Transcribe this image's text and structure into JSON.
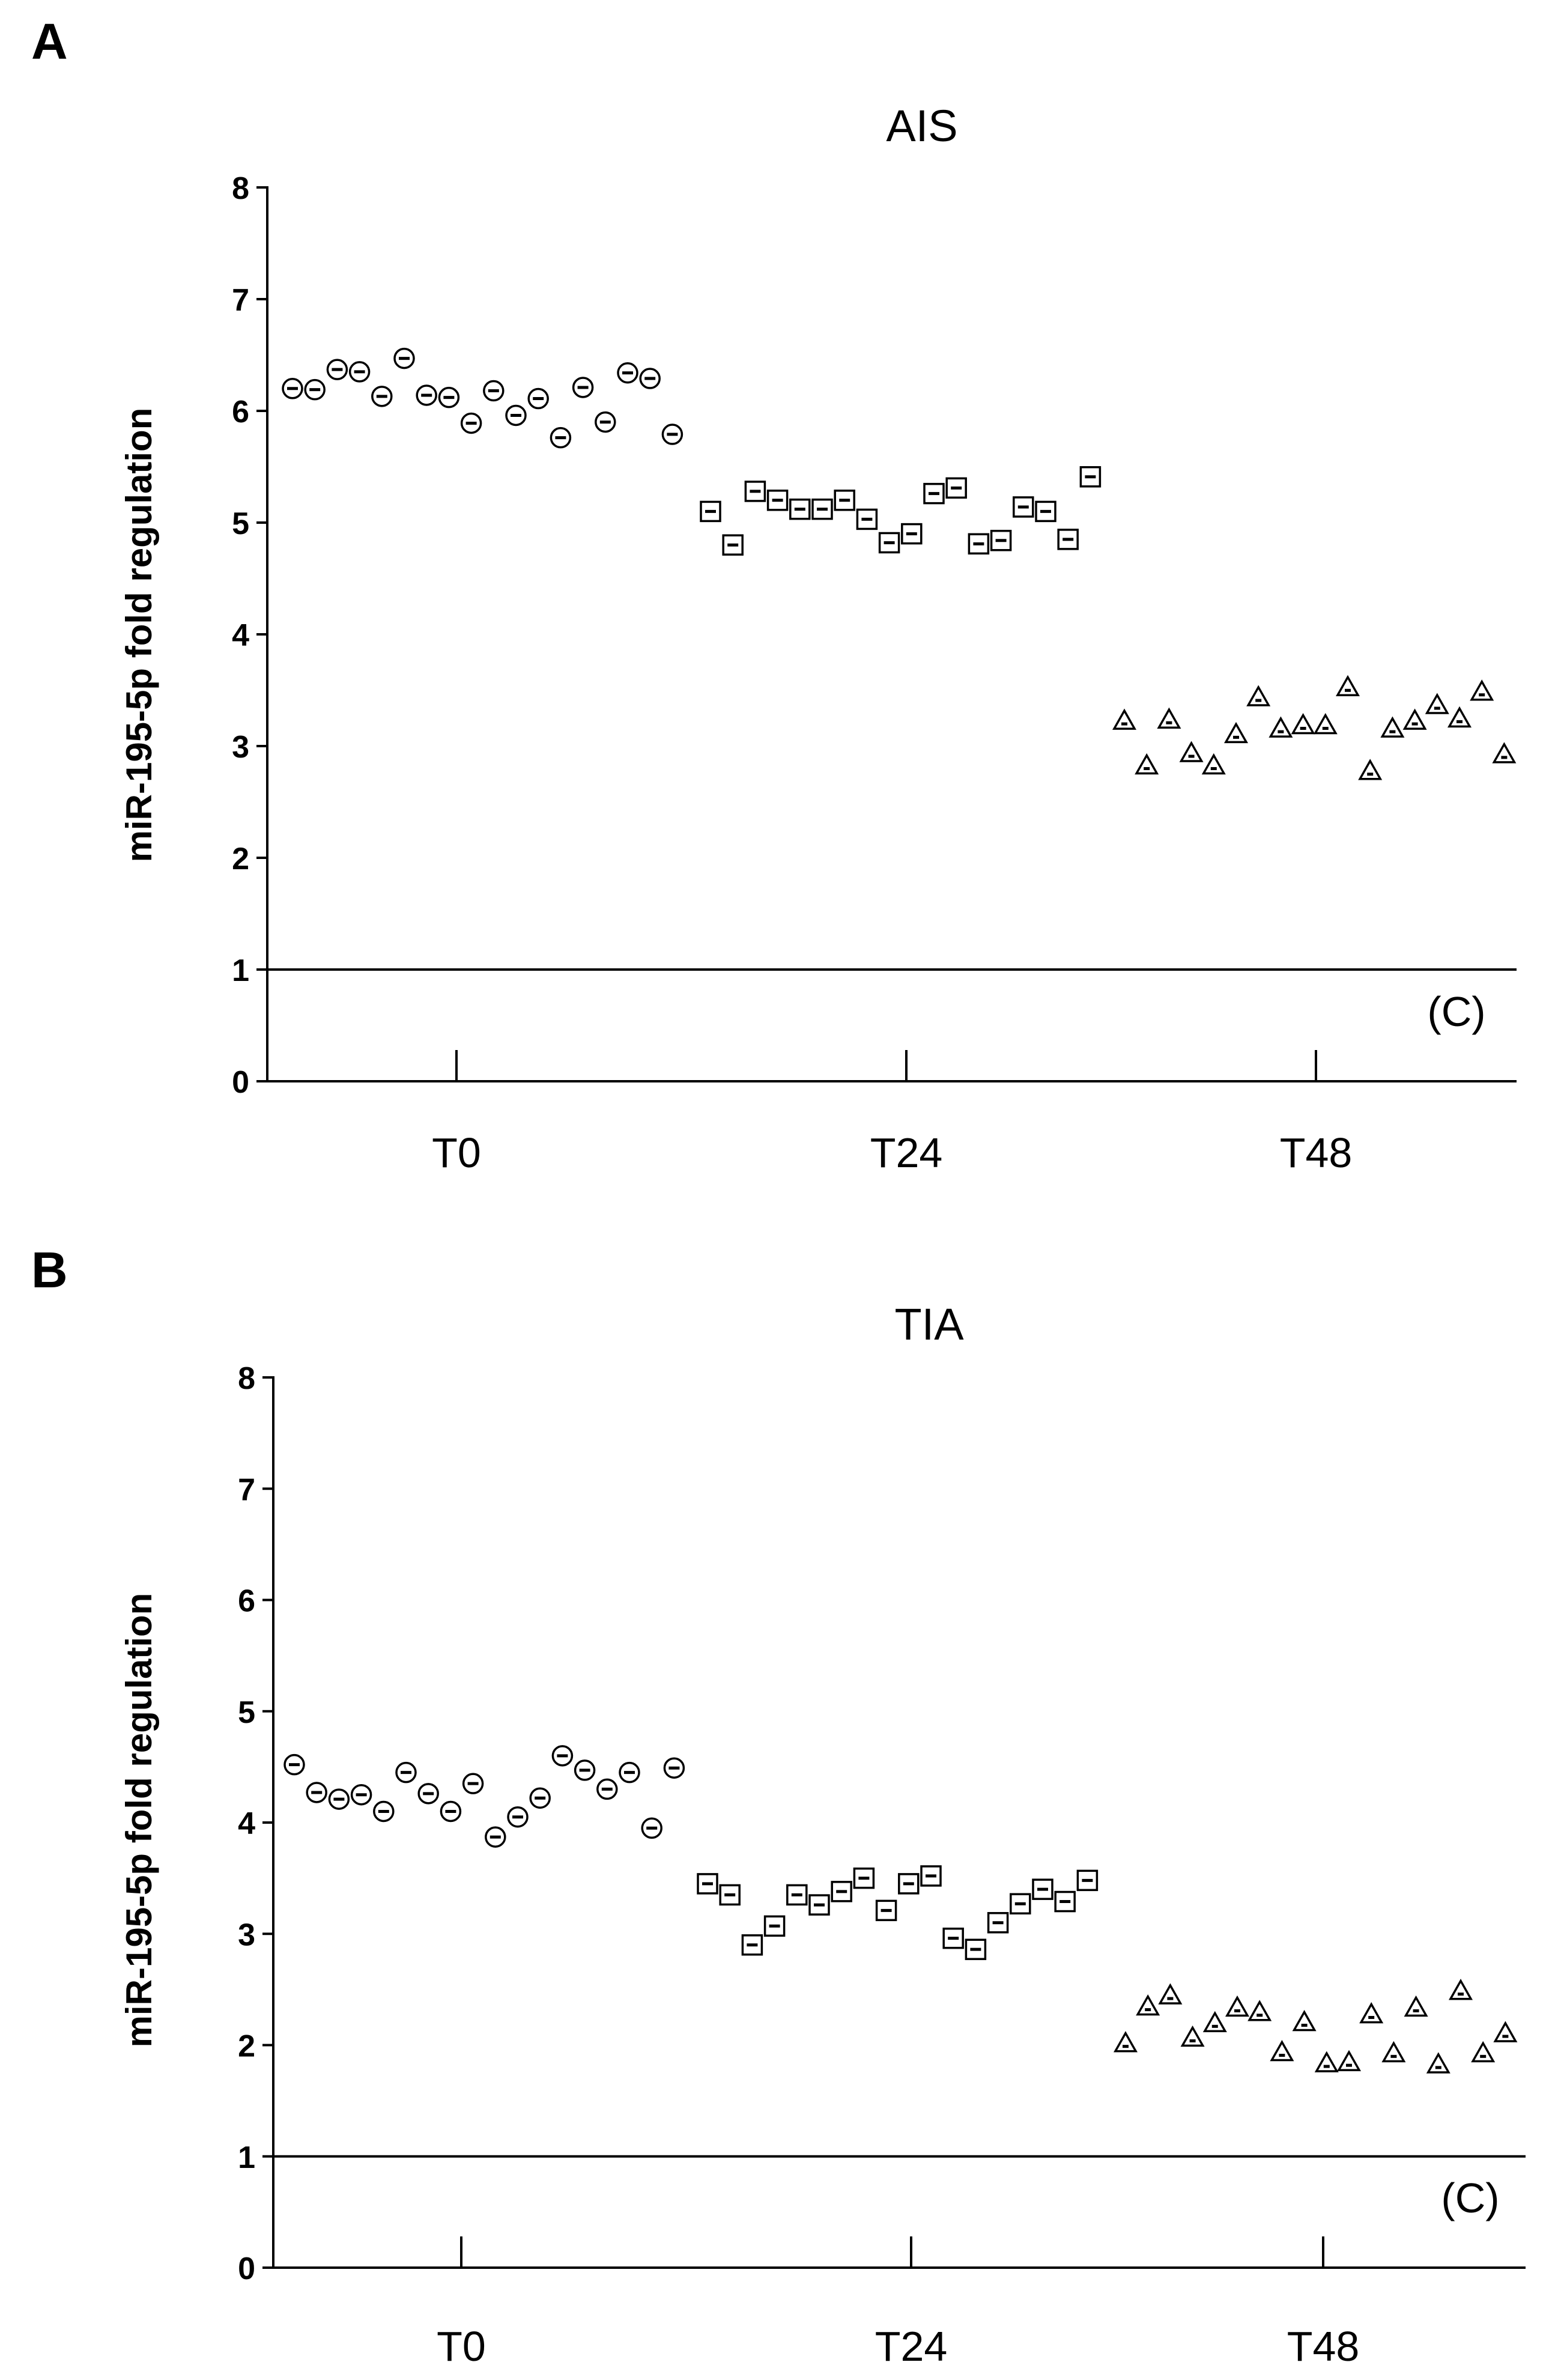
{
  "chart_data": [
    {
      "panel": "A",
      "type": "scatter",
      "title": "AIS",
      "ylabel": "miR-195-5p fold regulation",
      "xlabel": "",
      "ylim": [
        0,
        8
      ],
      "yticks": [
        0,
        1,
        2,
        3,
        4,
        5,
        6,
        7,
        8
      ],
      "categories": [
        "T0",
        "T24",
        "T48"
      ],
      "reference_line": {
        "y": 1,
        "label": "(C)"
      },
      "series": [
        {
          "name": "T0",
          "marker": "circle",
          "values": [
            6.2,
            6.19,
            6.37,
            6.35,
            6.13,
            6.47,
            6.14,
            6.12,
            5.89,
            6.18,
            5.96,
            6.11,
            5.76,
            6.21,
            5.9,
            6.34,
            6.29,
            5.79
          ]
        },
        {
          "name": "T24",
          "marker": "square",
          "values": [
            5.1,
            4.8,
            5.28,
            5.2,
            5.12,
            5.12,
            5.2,
            5.03,
            4.82,
            4.9,
            5.26,
            5.31,
            4.81,
            4.84,
            5.14,
            5.1,
            4.85,
            5.41
          ]
        },
        {
          "name": "T48",
          "marker": "triangle",
          "values": [
            3.22,
            2.82,
            3.23,
            2.93,
            2.82,
            3.1,
            3.43,
            3.15,
            3.18,
            3.18,
            3.52,
            2.77,
            3.15,
            3.22,
            3.36,
            3.24,
            3.48,
            2.92
          ]
        }
      ]
    },
    {
      "panel": "B",
      "type": "scatter",
      "title": "TIA",
      "ylabel": "miR-195-5p fold regulation",
      "xlabel": "",
      "ylim": [
        0,
        8
      ],
      "yticks": [
        0,
        1,
        2,
        3,
        4,
        5,
        6,
        7,
        8
      ],
      "categories": [
        "T0",
        "T24",
        "T48"
      ],
      "reference_line": {
        "y": 1,
        "label": "(C)"
      },
      "series": [
        {
          "name": "T0",
          "marker": "circle",
          "values": [
            4.52,
            4.27,
            4.21,
            4.25,
            4.1,
            4.45,
            4.26,
            4.1,
            4.35,
            3.87,
            4.05,
            4.22,
            4.6,
            4.47,
            4.3,
            4.45,
            3.95,
            4.49
          ]
        },
        {
          "name": "T24",
          "marker": "square",
          "values": [
            3.45,
            3.35,
            2.9,
            3.07,
            3.35,
            3.26,
            3.38,
            3.5,
            3.21,
            3.45,
            3.52,
            2.96,
            2.86,
            3.1,
            3.27,
            3.4,
            3.29,
            3.48
          ]
        },
        {
          "name": "T48",
          "marker": "triangle",
          "values": [
            2.01,
            2.34,
            2.44,
            2.06,
            2.19,
            2.33,
            2.29,
            1.93,
            2.2,
            1.83,
            1.84,
            2.27,
            1.92,
            2.33,
            1.82,
            2.48,
            1.92,
            2.1
          ]
        }
      ]
    }
  ]
}
